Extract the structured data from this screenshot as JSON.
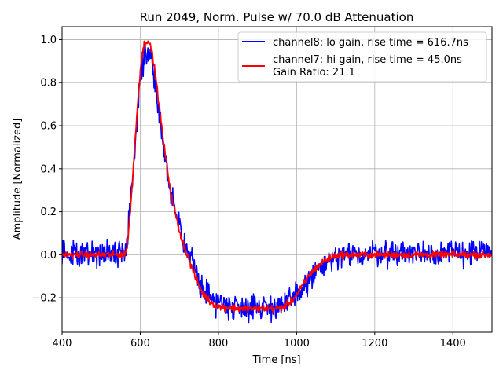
{
  "chart_data": {
    "type": "line",
    "title": "Run 2049, Norm. Pulse w/ 70.0 dB Attenuation",
    "xlabel": "Time [ns]",
    "ylabel": "Amplitude [Normalized]",
    "xlim": [
      400,
      1500
    ],
    "ylim": [
      -0.36,
      1.06
    ],
    "xticks": [
      400,
      600,
      800,
      1000,
      1200,
      1400
    ],
    "xtick_labels": [
      "400",
      "600",
      "800",
      "1000",
      "1200",
      "1400"
    ],
    "yticks": [
      -0.2,
      0.0,
      0.2,
      0.4,
      0.6,
      0.8,
      1.0
    ],
    "ytick_labels": [
      "−0.2",
      "0.0",
      "0.2",
      "0.4",
      "0.6",
      "0.8",
      "1.0"
    ],
    "grid": true,
    "legend_position": "top-right",
    "annotations": [
      "Gain Ratio: 21.1"
    ],
    "series": [
      {
        "name": "channel8: lo gain, rise time = 616.7ns",
        "color": "#0000ff",
        "noise_amplitude": 0.03,
        "x": [
          400,
          560,
          565,
          570,
          580,
          590,
          600,
          610,
          620,
          630,
          640,
          650,
          660,
          670,
          680,
          700,
          720,
          740,
          760,
          780,
          800,
          850,
          900,
          950,
          970,
          990,
          1010,
          1030,
          1050,
          1070,
          1090,
          1110,
          1150,
          1200,
          1500
        ],
        "y": [
          0.01,
          0.01,
          0.04,
          0.12,
          0.35,
          0.6,
          0.82,
          0.92,
          0.96,
          0.9,
          0.78,
          0.64,
          0.5,
          0.37,
          0.26,
          0.12,
          0.02,
          -0.07,
          -0.15,
          -0.2,
          -0.22,
          -0.24,
          -0.24,
          -0.24,
          -0.23,
          -0.21,
          -0.17,
          -0.12,
          -0.08,
          -0.05,
          -0.03,
          -0.01,
          0.0,
          0.01,
          0.01
        ]
      },
      {
        "name": "channel7: hi gain, rise time = 45.0ns",
        "color": "#ff0000",
        "noise_amplitude": 0.008,
        "x": [
          400,
          560,
          565,
          570,
          580,
          590,
          600,
          610,
          620,
          630,
          640,
          650,
          660,
          670,
          680,
          700,
          720,
          740,
          760,
          780,
          800,
          850,
          900,
          950,
          970,
          990,
          1010,
          1030,
          1050,
          1070,
          1090,
          1110,
          1150,
          1200,
          1500
        ],
        "y": [
          0.0,
          0.0,
          0.02,
          0.1,
          0.34,
          0.62,
          0.86,
          0.98,
          1.0,
          0.94,
          0.82,
          0.67,
          0.52,
          0.39,
          0.27,
          0.11,
          0.0,
          -0.1,
          -0.18,
          -0.22,
          -0.24,
          -0.25,
          -0.25,
          -0.25,
          -0.24,
          -0.21,
          -0.16,
          -0.1,
          -0.06,
          -0.03,
          -0.01,
          0.0,
          0.0,
          0.0,
          0.0
        ]
      }
    ]
  }
}
